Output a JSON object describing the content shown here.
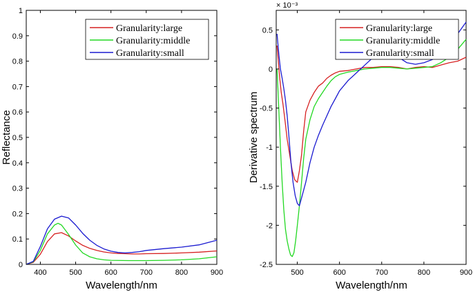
{
  "chart_data": [
    {
      "type": "line",
      "title": "",
      "xlabel": "Wavelength/nm",
      "ylabel": "Reflectance",
      "xlim": [
        360,
        900
      ],
      "ylim": [
        0,
        1
      ],
      "xticks": [
        400,
        500,
        600,
        700,
        800,
        900
      ],
      "yticks": [
        0,
        0.1,
        0.2,
        0.3,
        0.4,
        0.5,
        0.6,
        0.7,
        0.8,
        0.9,
        1
      ],
      "xtick_labels": [
        "400",
        "500",
        "600",
        "700",
        "800",
        "900"
      ],
      "ytick_labels": [
        "0",
        "0.1",
        "0.2",
        "0.3",
        "0.4",
        "0.5",
        "0.6",
        "0.7",
        "0.8",
        "0.9",
        "1"
      ],
      "legend_position": "top-right",
      "series": [
        {
          "name": "Granularity:large",
          "color": "#d62020",
          "x": [
            360,
            380,
            400,
            420,
            440,
            460,
            480,
            500,
            520,
            540,
            560,
            580,
            600,
            620,
            640,
            660,
            680,
            700,
            750,
            800,
            850,
            900
          ],
          "y": [
            0.0,
            0.008,
            0.04,
            0.09,
            0.12,
            0.125,
            0.112,
            0.092,
            0.075,
            0.063,
            0.055,
            0.049,
            0.045,
            0.043,
            0.042,
            0.041,
            0.041,
            0.042,
            0.043,
            0.045,
            0.048,
            0.053
          ]
        },
        {
          "name": "Granularity:middle",
          "color": "#22d822",
          "x": [
            360,
            380,
            400,
            420,
            440,
            450,
            460,
            480,
            500,
            520,
            540,
            560,
            580,
            600,
            650,
            700,
            750,
            800,
            850,
            900
          ],
          "y": [
            0.0,
            0.01,
            0.055,
            0.12,
            0.155,
            0.162,
            0.155,
            0.118,
            0.076,
            0.045,
            0.03,
            0.022,
            0.018,
            0.016,
            0.015,
            0.015,
            0.016,
            0.018,
            0.022,
            0.03
          ]
        },
        {
          "name": "Granularity:small",
          "color": "#1a1ad0",
          "x": [
            360,
            380,
            400,
            420,
            440,
            460,
            480,
            500,
            520,
            540,
            560,
            580,
            600,
            620,
            640,
            660,
            680,
            700,
            750,
            800,
            850,
            900
          ],
          "y": [
            0.0,
            0.012,
            0.07,
            0.14,
            0.178,
            0.19,
            0.183,
            0.155,
            0.122,
            0.095,
            0.075,
            0.061,
            0.052,
            0.047,
            0.045,
            0.047,
            0.05,
            0.055,
            0.062,
            0.068,
            0.077,
            0.095
          ]
        }
      ]
    },
    {
      "type": "line",
      "title": "",
      "xlabel": "Wavelength/nm",
      "ylabel": "Derivative spectrum",
      "axis_multiplier": "× 10⁻³",
      "xlim": [
        450,
        900
      ],
      "ylim": [
        -2.5,
        0.75
      ],
      "xticks": [
        500,
        600,
        700,
        800,
        900
      ],
      "yticks": [
        -2.5,
        -2,
        -1.5,
        -1,
        -0.5,
        0,
        0.5
      ],
      "xtick_labels": [
        "500",
        "600",
        "700",
        "800",
        "900"
      ],
      "ytick_labels": [
        "-2.5",
        "-2",
        "-1.5",
        "-1",
        "-0.5",
        "0",
        "0.5"
      ],
      "legend_position": "top-right",
      "series": [
        {
          "name": "Granularity:large",
          "color": "#d62020",
          "x": [
            452,
            458,
            462,
            466,
            470,
            476,
            482,
            488,
            494,
            500,
            505,
            510,
            515,
            520,
            530,
            540,
            550,
            560,
            570,
            580,
            590,
            600,
            620,
            640,
            660,
            680,
            700,
            720,
            740,
            760,
            780,
            800,
            820,
            840,
            860,
            880,
            900
          ],
          "y": [
            0.3,
            -0.1,
            -0.3,
            -0.45,
            -0.62,
            -0.9,
            -1.1,
            -1.3,
            -1.42,
            -1.45,
            -1.3,
            -1.1,
            -0.8,
            -0.55,
            -0.4,
            -0.3,
            -0.22,
            -0.18,
            -0.12,
            -0.08,
            -0.05,
            -0.03,
            -0.02,
            0.0,
            0.02,
            0.02,
            0.03,
            0.03,
            0.02,
            0.0,
            0.02,
            0.03,
            0.02,
            0.05,
            0.08,
            0.1,
            0.15
          ]
        },
        {
          "name": "Granularity:middle",
          "color": "#22d822",
          "x": [
            452,
            456,
            460,
            464,
            468,
            472,
            476,
            480,
            484,
            488,
            492,
            496,
            500,
            505,
            510,
            515,
            520,
            530,
            540,
            550,
            560,
            570,
            580,
            590,
            600,
            620,
            640,
            660,
            680,
            700,
            720,
            740,
            760,
            780,
            800,
            820,
            840,
            860,
            880,
            900
          ],
          "y": [
            0.0,
            -0.5,
            -1.0,
            -1.45,
            -1.8,
            -2.05,
            -2.2,
            -2.3,
            -2.38,
            -2.4,
            -2.35,
            -2.2,
            -2.0,
            -1.75,
            -1.45,
            -1.15,
            -0.9,
            -0.65,
            -0.48,
            -0.38,
            -0.3,
            -0.22,
            -0.15,
            -0.1,
            -0.07,
            -0.04,
            -0.02,
            0.0,
            0.01,
            0.02,
            0.02,
            0.01,
            0.0,
            0.01,
            0.02,
            0.03,
            0.08,
            0.15,
            0.25,
            0.38
          ]
        },
        {
          "name": "Granularity:small",
          "color": "#1a1ad0",
          "x": [
            452,
            456,
            460,
            464,
            468,
            472,
            476,
            480,
            485,
            490,
            495,
            500,
            505,
            510,
            520,
            530,
            540,
            550,
            560,
            570,
            580,
            590,
            600,
            620,
            640,
            660,
            680,
            700,
            720,
            740,
            760,
            780,
            800,
            820,
            840,
            860,
            880,
            900
          ],
          "y": [
            0.45,
            0.2,
            0.0,
            -0.12,
            -0.25,
            -0.4,
            -0.6,
            -0.85,
            -1.2,
            -1.45,
            -1.62,
            -1.72,
            -1.75,
            -1.65,
            -1.45,
            -1.2,
            -1.0,
            -0.85,
            -0.72,
            -0.6,
            -0.48,
            -0.38,
            -0.28,
            -0.15,
            -0.05,
            0.05,
            0.15,
            0.2,
            0.22,
            0.15,
            0.08,
            0.06,
            0.08,
            0.12,
            0.2,
            0.3,
            0.45,
            0.6
          ]
        }
      ]
    }
  ]
}
